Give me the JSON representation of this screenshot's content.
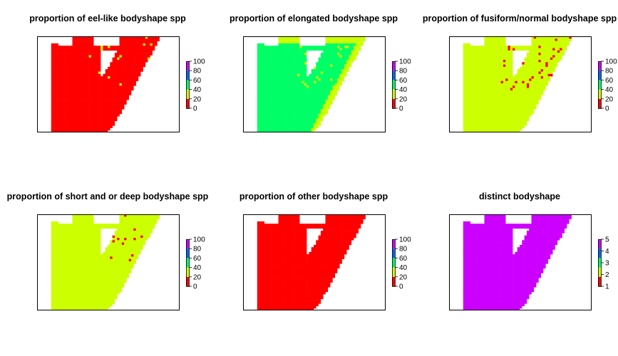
{
  "palette": {
    "red": "#FF0000",
    "yellow_green": "#CCFF00",
    "green": "#00FF66",
    "blue": "#0066FF",
    "magenta": "#CC00FF",
    "legend_ramp": [
      "#FF0000",
      "#CCFF00",
      "#00FF66",
      "#0066FF",
      "#CC00FF"
    ],
    "frame": "#000000"
  },
  "chart_data": [
    {
      "type": "heatmap",
      "title": "proportion of eel-like bodyshape spp",
      "fill": "#FF0000",
      "speckle": {
        "color": "#CCFF00",
        "density": 0.03
      },
      "legend": {
        "ticks": [
          0,
          20,
          40,
          60,
          80,
          100
        ],
        "range": [
          0,
          100
        ]
      }
    },
    {
      "type": "heatmap",
      "title": "proportion of elongated bodyshape spp",
      "fill": "#00FF66",
      "band": {
        "color": "#CCFF00"
      },
      "speckle": {
        "color": "#CCFF00",
        "density": 0.05
      },
      "legend": {
        "ticks": [
          0,
          20,
          40,
          60,
          80,
          100
        ],
        "range": [
          0,
          100
        ]
      }
    },
    {
      "type": "heatmap",
      "title": "proportion of fusiform/normal bodyshape spp",
      "fill": "#CCFF00",
      "speckle": {
        "color": "#FF0000",
        "density": 0.05
      },
      "legend": {
        "ticks": [
          0,
          20,
          40,
          60,
          80,
          100
        ],
        "range": [
          0,
          100
        ]
      }
    },
    {
      "type": "heatmap",
      "title": "proportion of short and or deep bodyshape spp",
      "fill": "#CCFF00",
      "speckle": {
        "color": "#FF0000",
        "density": 0.02
      },
      "legend": {
        "ticks": [
          0,
          20,
          40,
          60,
          80,
          100
        ],
        "range": [
          0,
          100
        ]
      }
    },
    {
      "type": "heatmap",
      "title": "proportion of other bodyshape spp",
      "fill": "#FF0000",
      "speckle": {
        "color": "#CCFF00",
        "density": 0.0
      },
      "legend": {
        "ticks": [
          0,
          20,
          40,
          60,
          80,
          100
        ],
        "range": [
          0,
          100
        ]
      }
    },
    {
      "type": "heatmap",
      "title": "distinct bodyshape",
      "fill": "#CC00FF",
      "speckle": {
        "color": "#0066FF",
        "density": 0.0
      },
      "legend": {
        "ticks": [
          1,
          2,
          3,
          4,
          5
        ],
        "range": [
          1,
          5
        ]
      }
    }
  ]
}
